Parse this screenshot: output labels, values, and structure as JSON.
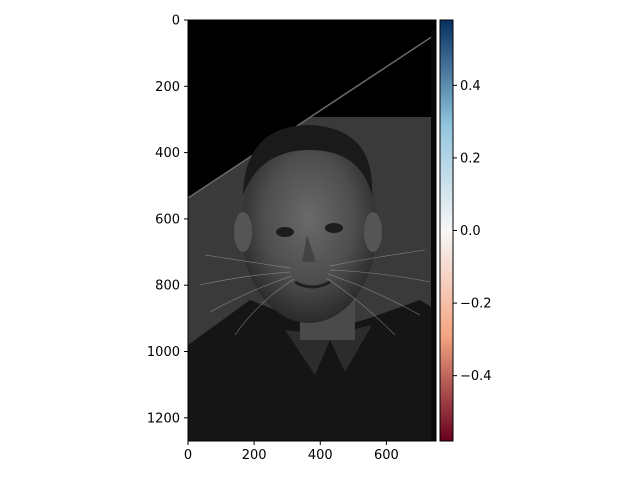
{
  "chart_data": {
    "type": "heatmap",
    "content": "grayscale hybrid image (cat whiskers blended over a man's face)",
    "colormap": "gray",
    "grid": false,
    "x": {
      "range": [
        0,
        750
      ],
      "ticks": [
        0,
        200,
        400,
        600
      ],
      "tick_labels": [
        "0",
        "200",
        "400",
        "600"
      ]
    },
    "y": {
      "range": [
        0,
        1270
      ],
      "inverted": true,
      "ticks": [
        0,
        200,
        400,
        600,
        800,
        1000,
        1200
      ],
      "tick_labels": [
        "0",
        "200",
        "400",
        "600",
        "800",
        "1000",
        "1200"
      ]
    },
    "colorbar": {
      "colormap": "RdBu",
      "range": [
        -0.58,
        0.58
      ],
      "ticks": [
        -0.4,
        -0.2,
        0.0,
        0.2,
        0.4
      ],
      "tick_labels": [
        "−0.4",
        "−0.2",
        "0.0",
        "0.2",
        "0.4"
      ],
      "colors": {
        "low": "#67001f",
        "mid_low": "#f4a582",
        "mid": "#f7f7f7",
        "mid_high": "#92c5de",
        "high": "#053061"
      }
    }
  }
}
